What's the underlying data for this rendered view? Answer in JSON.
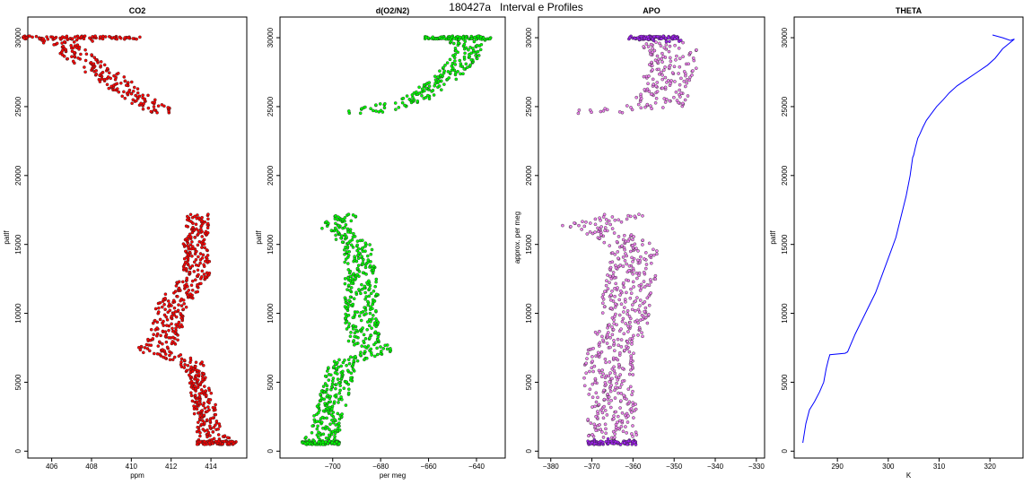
{
  "title": "180427a   Interval e Profiles",
  "chart_data": [
    {
      "type": "scatter",
      "title": "CO2",
      "xlabel": "ppm",
      "ylabel": "patlf",
      "xlim": [
        404.8,
        415.8
      ],
      "ylim": [
        -500,
        31500
      ],
      "xticks": [
        406,
        408,
        410,
        412,
        414
      ],
      "yticks": [
        0,
        5000,
        10000,
        15000,
        20000,
        25000,
        30000
      ],
      "color": "#ff0000",
      "profile": [
        {
          "y": 30000,
          "x": 407.5,
          "spread": 3.0
        },
        {
          "y": 29700,
          "x": 406.5,
          "spread": 1.0
        },
        {
          "y": 29000,
          "x": 407.0,
          "spread": 0.8
        },
        {
          "y": 28000,
          "x": 408.0,
          "spread": 0.8
        },
        {
          "y": 27000,
          "x": 409.0,
          "spread": 0.8
        },
        {
          "y": 26000,
          "x": 410.0,
          "spread": 0.8
        },
        {
          "y": 25000,
          "x": 411.0,
          "spread": 0.8
        },
        {
          "y": 24500,
          "x": 411.8,
          "spread": 0.6
        },
        {
          "y": 17000,
          "x": 413.4,
          "spread": 0.6
        },
        {
          "y": 15000,
          "x": 413.2,
          "spread": 0.6
        },
        {
          "y": 13000,
          "x": 413.3,
          "spread": 0.7
        },
        {
          "y": 11500,
          "x": 412.5,
          "spread": 0.8
        },
        {
          "y": 10000,
          "x": 411.8,
          "spread": 0.8
        },
        {
          "y": 8500,
          "x": 411.8,
          "spread": 0.8
        },
        {
          "y": 7300,
          "x": 411.0,
          "spread": 1.0
        },
        {
          "y": 6500,
          "x": 413.0,
          "spread": 0.6
        },
        {
          "y": 5000,
          "x": 413.4,
          "spread": 0.5
        },
        {
          "y": 3000,
          "x": 413.7,
          "spread": 0.6
        },
        {
          "y": 1500,
          "x": 413.9,
          "spread": 0.6
        },
        {
          "y": 600,
          "x": 414.3,
          "spread": 1.0
        }
      ]
    },
    {
      "type": "scatter",
      "title": "d(O2/N2)",
      "xlabel": "per meg",
      "ylabel": "patlf",
      "xlim": [
        -722,
        -628
      ],
      "ylim": [
        -500,
        31500
      ],
      "xticks": [
        -700,
        -680,
        -660,
        -640
      ],
      "yticks": [
        0,
        5000,
        10000,
        15000,
        20000,
        25000,
        30000
      ],
      "color": "#00ff00",
      "profile": [
        {
          "y": 30000,
          "x": -648,
          "spread": 14
        },
        {
          "y": 29500,
          "x": -642,
          "spread": 6
        },
        {
          "y": 28500,
          "x": -645,
          "spread": 6
        },
        {
          "y": 27500,
          "x": -650,
          "spread": 6
        },
        {
          "y": 26500,
          "x": -657,
          "spread": 6
        },
        {
          "y": 25500,
          "x": -666,
          "spread": 6
        },
        {
          "y": 24700,
          "x": -685,
          "spread": 10
        },
        {
          "y": 17000,
          "x": -695,
          "spread": 6
        },
        {
          "y": 16300,
          "x": -700,
          "spread": 6
        },
        {
          "y": 15000,
          "x": -690,
          "spread": 6
        },
        {
          "y": 13000,
          "x": -688,
          "spread": 7
        },
        {
          "y": 11000,
          "x": -688,
          "spread": 7
        },
        {
          "y": 9500,
          "x": -688,
          "spread": 7
        },
        {
          "y": 8000,
          "x": -688,
          "spread": 8
        },
        {
          "y": 7300,
          "x": -680,
          "spread": 7
        },
        {
          "y": 6500,
          "x": -695,
          "spread": 6
        },
        {
          "y": 5000,
          "x": -698,
          "spread": 6
        },
        {
          "y": 3500,
          "x": -700,
          "spread": 6
        },
        {
          "y": 2000,
          "x": -703,
          "spread": 6
        },
        {
          "y": 600,
          "x": -705,
          "spread": 8
        }
      ]
    },
    {
      "type": "scatter",
      "title": "APO",
      "xlabel": "",
      "ylabel": "approx. per meg",
      "xlim": [
        -383,
        -328
      ],
      "ylim": [
        -500,
        31500
      ],
      "xticks": [
        -380,
        -370,
        -360,
        -350,
        -340,
        -330
      ],
      "yticks": [
        0,
        5000,
        10000,
        15000,
        20000,
        25000,
        30000
      ],
      "color": "#ee82ee",
      "top_color": "#a020f0",
      "profile": [
        {
          "y": 30000,
          "x": -355,
          "spread": 6
        },
        {
          "y": 29000,
          "x": -350,
          "spread": 6
        },
        {
          "y": 28000,
          "x": -350,
          "spread": 6
        },
        {
          "y": 27000,
          "x": -352,
          "spread": 6
        },
        {
          "y": 26000,
          "x": -352,
          "spread": 6
        },
        {
          "y": 25000,
          "x": -355,
          "spread": 7
        },
        {
          "y": 24700,
          "x": -368,
          "spread": 7
        },
        {
          "y": 17000,
          "x": -362,
          "spread": 5
        },
        {
          "y": 16400,
          "x": -372,
          "spread": 6
        },
        {
          "y": 15000,
          "x": -360,
          "spread": 6
        },
        {
          "y": 13000,
          "x": -360,
          "spread": 6
        },
        {
          "y": 11000,
          "x": -362,
          "spread": 6
        },
        {
          "y": 9500,
          "x": -362,
          "spread": 6
        },
        {
          "y": 8000,
          "x": -364,
          "spread": 6
        },
        {
          "y": 6500,
          "x": -366,
          "spread": 6
        },
        {
          "y": 5000,
          "x": -366,
          "spread": 6
        },
        {
          "y": 3500,
          "x": -365,
          "spread": 6
        },
        {
          "y": 2000,
          "x": -365,
          "spread": 6
        },
        {
          "y": 600,
          "x": -365,
          "spread": 6
        }
      ]
    },
    {
      "type": "line",
      "title": "THETA",
      "xlabel": "K",
      "ylabel": "patlf",
      "xlim": [
        281.5,
        326.5
      ],
      "ylim": [
        -500,
        31500
      ],
      "xticks": [
        290,
        300,
        310,
        320
      ],
      "yticks": [
        0,
        5000,
        10000,
        15000,
        20000,
        25000,
        30000
      ],
      "color": "#0000ff",
      "x": [
        283.2,
        283.8,
        284.5,
        285.5,
        286.5,
        287.3,
        287.8,
        288.2,
        288.5,
        291.5,
        292.0,
        293.5,
        295.5,
        297.5,
        299.0,
        300.5,
        301.5,
        302.5,
        303.5,
        304.3,
        304.8,
        305.0,
        305.3,
        305.8,
        306.2,
        306.8,
        307.5,
        308.5,
        309.5,
        310.8,
        312.0,
        313.5,
        315.5,
        317.5,
        319.5,
        321.0,
        322.5,
        324.8,
        324.0,
        322.5,
        320.5
      ],
      "y": [
        600,
        2000,
        3000,
        3600,
        4300,
        5000,
        6000,
        6600,
        7000,
        7100,
        7200,
        8500,
        10000,
        11500,
        13000,
        14500,
        15500,
        17000,
        18500,
        20000,
        21300,
        21500,
        22000,
        22700,
        23000,
        23500,
        24000,
        24500,
        25000,
        25500,
        26000,
        26500,
        27000,
        27500,
        28000,
        28500,
        29200,
        29900,
        29800,
        30000,
        30200
      ]
    }
  ]
}
